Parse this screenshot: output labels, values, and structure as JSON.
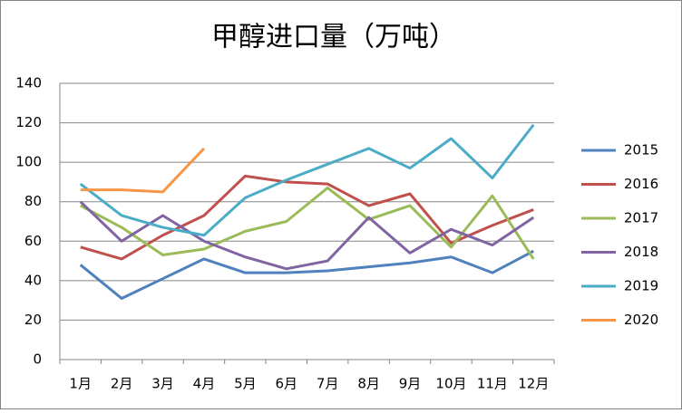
{
  "chart_data": {
    "type": "line",
    "title": "甲醇进口量（万吨）",
    "categories": [
      "1月",
      "2月",
      "3月",
      "4月",
      "5月",
      "6月",
      "7月",
      "8月",
      "9月",
      "10月",
      "11月",
      "12月"
    ],
    "series": [
      {
        "name": "2015",
        "color": "#4F81BD",
        "values": [
          48,
          31,
          41,
          51,
          44,
          44,
          45,
          47,
          49,
          52,
          44,
          55
        ]
      },
      {
        "name": "2016",
        "color": "#C0504D",
        "values": [
          57,
          51,
          63,
          73,
          93,
          90,
          89,
          78,
          84,
          59,
          68,
          76
        ]
      },
      {
        "name": "2017",
        "color": "#9BBB59",
        "values": [
          78,
          67,
          53,
          56,
          65,
          70,
          87,
          71,
          78,
          57,
          83,
          51
        ]
      },
      {
        "name": "2018",
        "color": "#8064A2",
        "values": [
          80,
          60,
          73,
          60,
          52,
          46,
          50,
          72,
          54,
          66,
          58,
          72
        ]
      },
      {
        "name": "2019",
        "color": "#4BACC6",
        "values": [
          89,
          73,
          67,
          63,
          82,
          91,
          99,
          107,
          97,
          112,
          92,
          119
        ]
      },
      {
        "name": "2020",
        "color": "#F79646",
        "values": [
          86,
          86,
          85,
          107,
          null,
          null,
          null,
          null,
          null,
          null,
          null,
          null
        ]
      }
    ],
    "ylim": [
      0,
      140
    ],
    "yticks": [
      0,
      20,
      40,
      60,
      80,
      100,
      120,
      140
    ],
    "grid": true,
    "legend": "right"
  }
}
